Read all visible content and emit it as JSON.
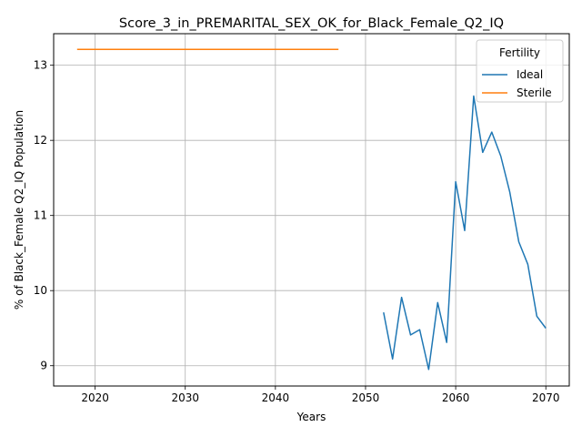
{
  "chart_data": {
    "type": "line",
    "title": "Score_3_in_PREMARITAL_SEX_OK_for_Black_Female_Q2_IQ",
    "xlabel": "Years",
    "ylabel": "% of Black_Female Q2_IQ Population",
    "xlim": [
      2015.4,
      2072.6
    ],
    "ylim": [
      8.73,
      13.42
    ],
    "xticks": [
      2020,
      2030,
      2040,
      2050,
      2060,
      2070
    ],
    "yticks": [
      9,
      10,
      11,
      12,
      13
    ],
    "grid": true,
    "legend": {
      "title": "Fertility",
      "position": "top-right"
    },
    "series": [
      {
        "name": "Ideal",
        "color": "#1f77b4",
        "x": [
          2052,
          2053,
          2054,
          2055,
          2056,
          2057,
          2058,
          2059,
          2060,
          2061,
          2062,
          2063,
          2064,
          2065,
          2066,
          2067,
          2068,
          2069,
          2070
        ],
        "y": [
          9.71,
          9.09,
          9.91,
          9.41,
          9.48,
          8.95,
          9.84,
          9.31,
          11.45,
          10.8,
          12.59,
          11.84,
          12.11,
          11.79,
          11.31,
          10.65,
          10.35,
          9.66,
          9.5
        ]
      },
      {
        "name": "Sterile",
        "color": "#ff7f0e",
        "x": [
          2018,
          2047
        ],
        "y": [
          13.21,
          13.21
        ]
      }
    ]
  }
}
